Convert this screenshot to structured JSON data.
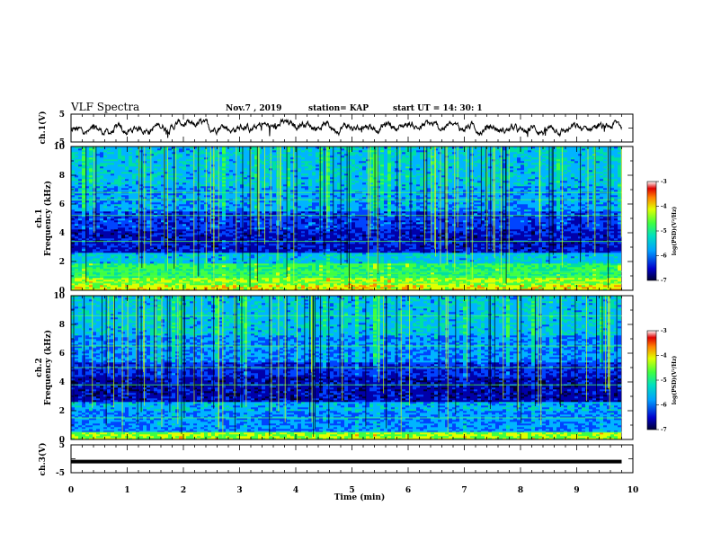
{
  "header": {
    "title": "VLF Spectra",
    "date": "Nov.7  , 2019",
    "station": "station= KAP",
    "start_ut": "start  UT  =   14: 30: 1"
  },
  "chart_data": [
    {
      "type": "line",
      "panel": "ch1-waveform",
      "ylabel": "ch.1(V)",
      "xlim": [
        0,
        10
      ],
      "ylim": [
        -5,
        5
      ],
      "yticks": [
        "5",
        "-5"
      ],
      "envelope": {
        "x": [
          0,
          1,
          2,
          3,
          4,
          5,
          6,
          7,
          8,
          9,
          9.8
        ],
        "center": [
          -1.3,
          -1.0,
          1.3,
          -0.2,
          1.5,
          0.0,
          1.0,
          0.2,
          -0.8,
          -0.3,
          0.9
        ]
      },
      "color": "#000000"
    },
    {
      "type": "heatmap",
      "panel": "ch1-spectrogram",
      "ylabel": "ch.1\nFrequency  (kHz)",
      "xlim": [
        0,
        10
      ],
      "ylim": [
        0,
        10
      ],
      "yticks": [
        "0",
        "2",
        "4",
        "6",
        "8",
        "10"
      ],
      "data_end_min": 9.8,
      "colorbar": {
        "label": "log(PSD)(V²/Hz)",
        "range": [
          -7,
          -3
        ],
        "ticks": [
          "-3",
          "-4",
          "-5",
          "-6",
          "-7"
        ]
      }
    },
    {
      "type": "heatmap",
      "panel": "ch2-spectrogram",
      "ylabel": "ch.2\nFrequency  (kHz)",
      "xlim": [
        0,
        10
      ],
      "ylim": [
        0,
        10
      ],
      "yticks": [
        "0",
        "2",
        "4",
        "6",
        "8",
        "10"
      ],
      "data_end_min": 9.8,
      "colorbar": {
        "label": "log(PSD)(V²/Hz)",
        "range": [
          -7,
          -3
        ],
        "ticks": [
          "-3",
          "-4",
          "-5",
          "-6",
          "-7"
        ]
      }
    },
    {
      "type": "line",
      "panel": "ch3-waveform",
      "ylabel": "ch.3(V)",
      "xlim": [
        0,
        10
      ],
      "ylim": [
        -5,
        5
      ],
      "yticks": [
        "5",
        "-5"
      ],
      "value": -1,
      "color": "#000000"
    }
  ],
  "x_axis": {
    "label": "Time  (min)",
    "ticks": [
      "0",
      "1",
      "2",
      "3",
      "4",
      "5",
      "6",
      "7",
      "8",
      "9",
      "10"
    ]
  },
  "colors": {
    "colormap": [
      "#000033",
      "#0000aa",
      "#0044ff",
      "#00b4ff",
      "#00e0a0",
      "#40ff40",
      "#e0ff00",
      "#ff8c00",
      "#e00000",
      "#ffffff"
    ]
  }
}
